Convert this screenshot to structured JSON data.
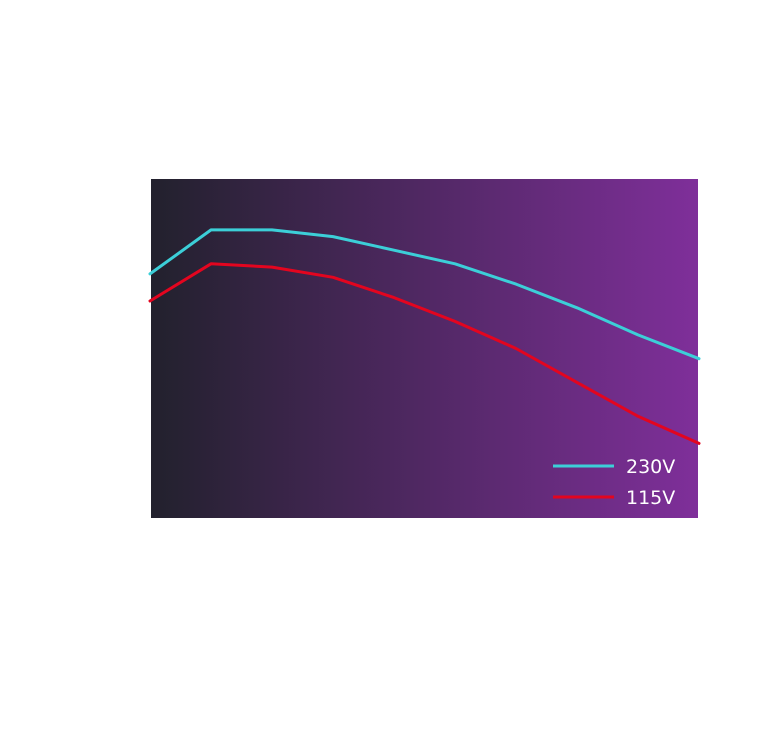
{
  "chart_data": {
    "type": "line",
    "title": "",
    "xlabel": "",
    "ylabel": "",
    "x": [
      0,
      1,
      2,
      3,
      4,
      5,
      6,
      7,
      8,
      9
    ],
    "series": [
      {
        "name": "230V",
        "color": "#3ccfd8",
        "values": [
          0.72,
          0.85,
          0.85,
          0.83,
          0.79,
          0.75,
          0.69,
          0.62,
          0.54,
          0.47
        ]
      },
      {
        "name": "115V",
        "color": "#e3051f",
        "values": [
          0.64,
          0.75,
          0.74,
          0.71,
          0.65,
          0.58,
          0.5,
          0.4,
          0.3,
          0.22
        ]
      }
    ],
    "xlim": [
      0,
      9
    ],
    "ylim": [
      0,
      1
    ],
    "grid": false,
    "legend_position": "bottom-right",
    "plot_background_gradient": [
      "#22212d",
      "#7f2f9a"
    ]
  }
}
